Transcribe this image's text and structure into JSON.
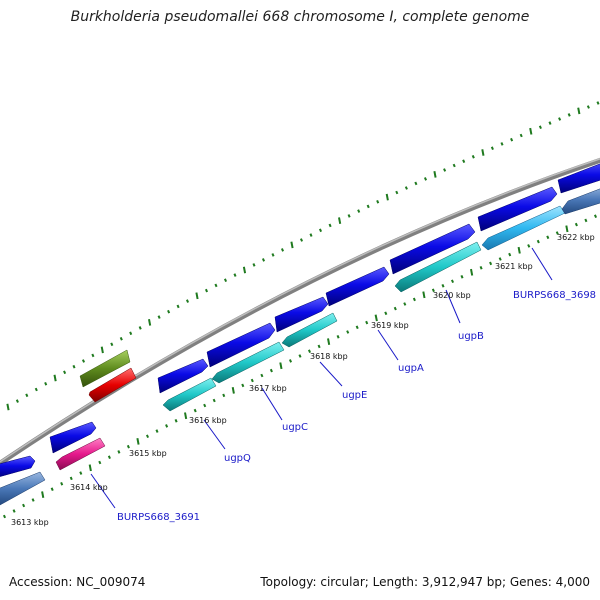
{
  "title": "Burkholderia pseudomallei 668 chromosome I, complete genome",
  "footer": {
    "accession": "Accession: NC_009074",
    "summary": "Topology: circular; Length: 3,912,947 bp; Genes: 4,000"
  },
  "kbp_labels": [
    "3613 kbp",
    "3614 kbp",
    "3615 kbp",
    "3616 kbp",
    "3617 kbp",
    "3618 kbp",
    "3619 kbp",
    "3620 kbp",
    "3621 kbp",
    "3622 kbp"
  ],
  "gene_labels": [
    "BURPS668_3691",
    "ugpQ",
    "ugpC",
    "ugpE",
    "ugpA",
    "ugpB",
    "BURPS668_3698"
  ],
  "colors": {
    "backbone": "#808080",
    "tick": "#1f7a1f",
    "cds_forward": "#0a0ae6",
    "cds_reverse_cyan": "#20c8c8",
    "cds_reverse_light": "#30b8f0",
    "cds_steel": "#4a78b8",
    "magenta": "#e6198c",
    "olive": "#5f8c1e",
    "red": "#e60000",
    "gene_label": "#1a1ac8"
  }
}
